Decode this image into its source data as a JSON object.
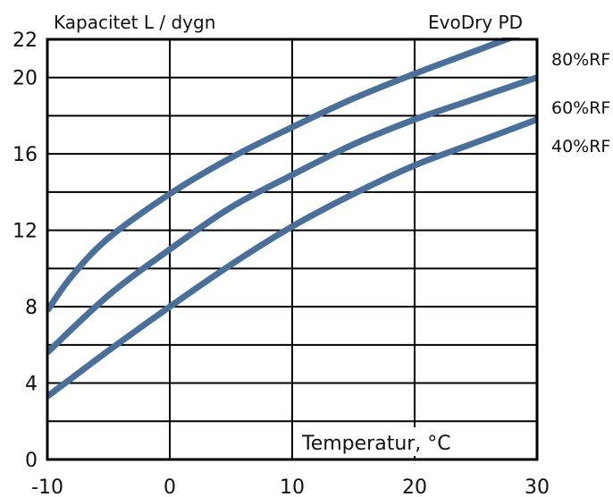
{
  "chart_data": {
    "type": "line",
    "title_left": "Kapacitet L / dygn",
    "title_right": "EvoDry PD",
    "xlabel": "Temperatur, °C",
    "ylabel": "",
    "xlim": [
      -10,
      30
    ],
    "ylim": [
      0,
      22
    ],
    "xticks": [
      "-10",
      "0",
      "10",
      "20",
      "30"
    ],
    "yticks": [
      "0",
      "4",
      "8",
      "12",
      "16",
      "20",
      "22"
    ],
    "x_gridlines": [
      -10,
      0,
      10,
      20,
      30
    ],
    "y_gridlines": [
      0,
      2,
      4,
      6,
      8,
      10,
      12,
      14,
      16,
      18,
      20,
      22
    ],
    "grid": true,
    "series": [
      {
        "name": "80%RF",
        "color": "#4a6f99",
        "points": [
          [
            -10,
            7.8
          ],
          [
            -8,
            9.6
          ],
          [
            -5,
            11.6
          ],
          [
            0,
            13.9
          ],
          [
            5,
            15.8
          ],
          [
            10,
            17.4
          ],
          [
            15,
            18.9
          ],
          [
            20,
            20.2
          ],
          [
            25,
            21.4
          ],
          [
            30,
            22.6
          ]
        ]
      },
      {
        "name": "60%RF",
        "color": "#4a6f99",
        "points": [
          [
            -10,
            5.6
          ],
          [
            -5,
            8.6
          ],
          [
            0,
            11.0
          ],
          [
            5,
            13.2
          ],
          [
            10,
            14.9
          ],
          [
            15,
            16.5
          ],
          [
            20,
            17.8
          ],
          [
            25,
            18.9
          ],
          [
            30,
            20.0
          ]
        ]
      },
      {
        "name": "40%RF",
        "color": "#4a6f99",
        "points": [
          [
            -10,
            3.3
          ],
          [
            -5,
            5.7
          ],
          [
            0,
            8.0
          ],
          [
            5,
            10.2
          ],
          [
            10,
            12.2
          ],
          [
            15,
            13.9
          ],
          [
            20,
            15.4
          ],
          [
            25,
            16.6
          ],
          [
            30,
            17.8
          ]
        ]
      }
    ]
  }
}
